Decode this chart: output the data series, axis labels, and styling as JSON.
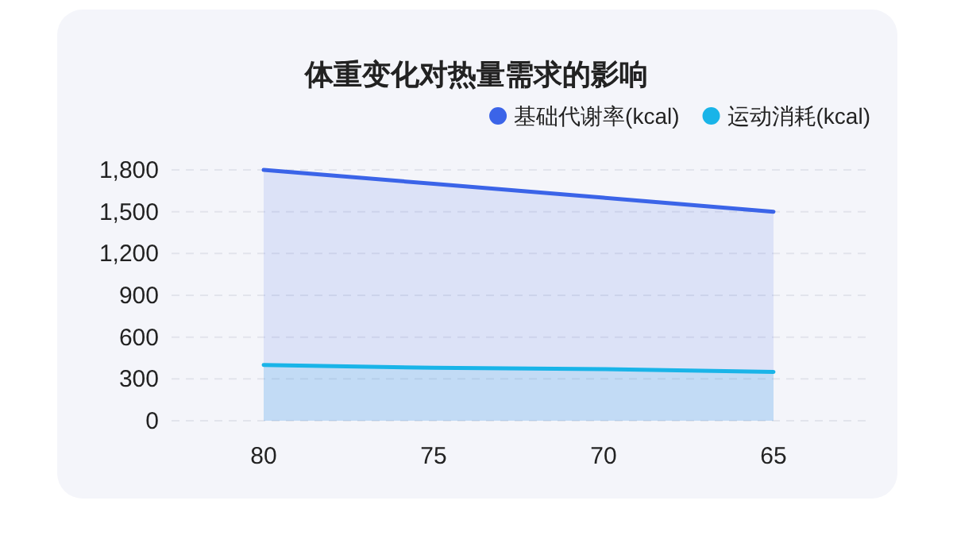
{
  "chart_data": {
    "type": "area",
    "title": "体重变化对热量需求的影响",
    "categories": [
      "80",
      "75",
      "70",
      "65"
    ],
    "series": [
      {
        "name": "基础代谢率(kcal)",
        "color": "#3b64e8",
        "values": [
          1800,
          1700,
          1600,
          1500
        ]
      },
      {
        "name": "运动消耗(kcal)",
        "color": "#19b4e8",
        "values": [
          400,
          380,
          370,
          350
        ]
      }
    ],
    "ylim": [
      0,
      1800
    ],
    "yticks": [
      0,
      300,
      600,
      900,
      {
        "value": 1200,
        "label": "1,200"
      },
      {
        "value": 1500,
        "label": "1,500"
      },
      {
        "value": 1800,
        "label": "1,800"
      }
    ],
    "grid": "y",
    "legend": "top right",
    "marker": "none",
    "line_style": "solid"
  }
}
